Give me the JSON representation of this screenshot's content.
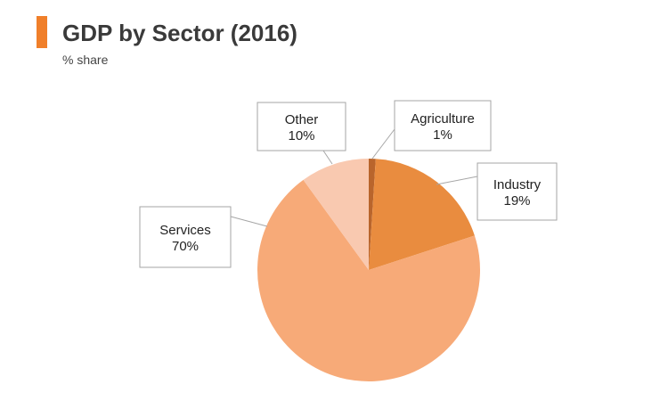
{
  "header": {
    "title": "GDP by Sector (2016)",
    "subtitle": "% share"
  },
  "colors": {
    "accent": "#f07f2a"
  },
  "chart_data": {
    "type": "pie",
    "title": "GDP by Sector (2016)",
    "subtitle": "% share",
    "unit": "%",
    "slices": [
      {
        "label": "Agriculture",
        "value": 1,
        "display": "1%",
        "color": "#b9652c"
      },
      {
        "label": "Industry",
        "value": 19,
        "display": "19%",
        "color": "#e98c3f"
      },
      {
        "label": "Services",
        "value": 70,
        "display": "70%",
        "color": "#f7aa78"
      },
      {
        "label": "Other",
        "value": 10,
        "display": "10%",
        "color": "#f9c9b0"
      }
    ],
    "start_angle": "12 o'clock",
    "direction": "clockwise",
    "legend": "none",
    "labels": "callouts"
  }
}
